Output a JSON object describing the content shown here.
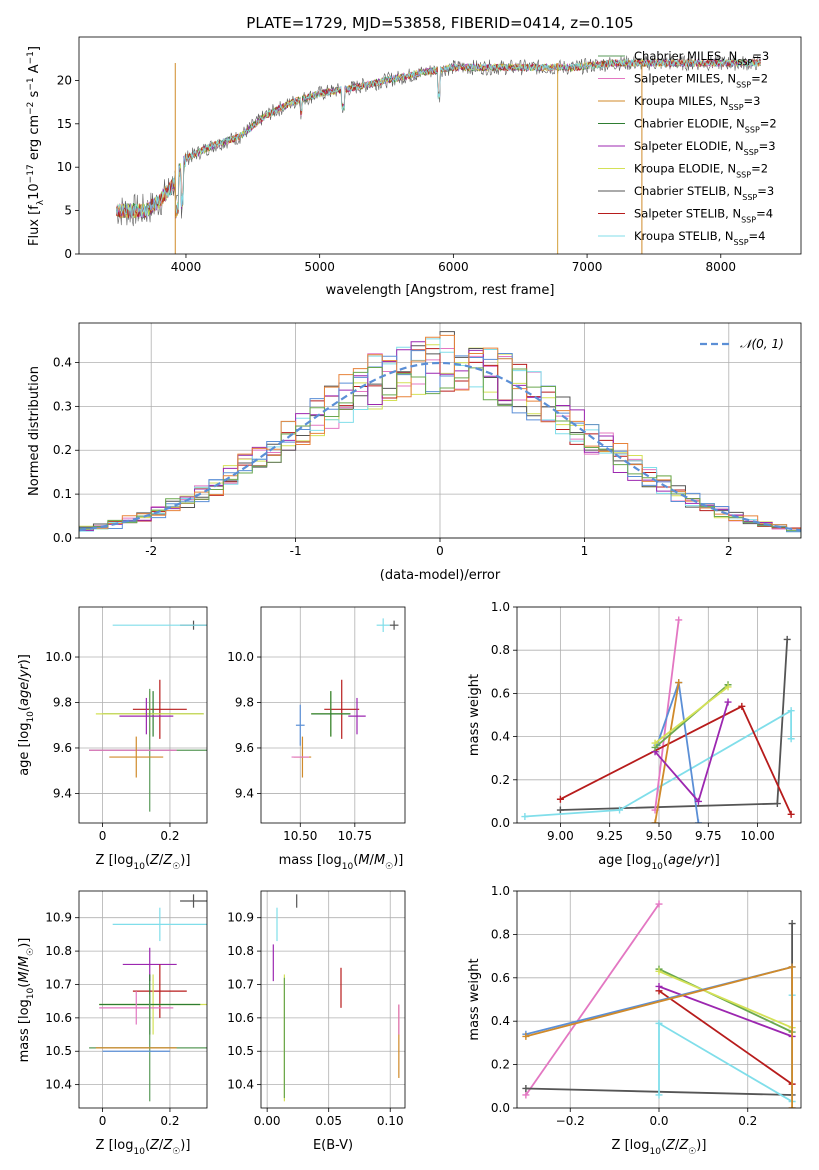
{
  "chart_data": [
    {
      "id": "spectrum",
      "type": "line",
      "title": "PLATE=1729, MJD=53858, FIBERID=0414, z=0.105",
      "xlabel": "wavelength [Angstrom, rest frame]",
      "ylabel": "Flux [f_λ 10^-17 erg cm^-2 s^-1 A^-1]",
      "xlim": [
        3200,
        8600
      ],
      "ylim": [
        0,
        25
      ],
      "xticks": [
        4000,
        5000,
        6000,
        7000,
        8000
      ],
      "yticks": [
        0,
        5,
        10,
        15,
        20
      ],
      "legend_position": "right",
      "continuum": {
        "x": [
          3500,
          3700,
          3800,
          3900,
          4000,
          4200,
          4400,
          4600,
          4800,
          5000,
          5200,
          5500,
          5800,
          6000,
          6300,
          6600,
          6900,
          7200,
          7500,
          7800,
          8100,
          8300
        ],
        "y": [
          5,
          5,
          6,
          8,
          11,
          12.5,
          13.5,
          16,
          17.5,
          18.5,
          19,
          20,
          21,
          21.5,
          21.5,
          21.5,
          21.5,
          22,
          22,
          22,
          22,
          22
        ]
      },
      "series": [
        {
          "name": "Chabrier MILES, N_SSP=3",
          "color": "#5a9a5a"
        },
        {
          "name": "Salpeter MILES, N_SSP=2",
          "color": "#e377c2"
        },
        {
          "name": "Kroupa MILES, N_SSP=3",
          "color": "#d08a2a"
        },
        {
          "name": "Chabrier ELODIE, N_SSP=2",
          "color": "#2e7d32"
        },
        {
          "name": "Salpeter ELODIE, N_SSP=3",
          "color": "#9c27b0"
        },
        {
          "name": "Kroupa ELODIE, N_SSP=2",
          "color": "#d4e157"
        },
        {
          "name": "Chabrier STELIB, N_SSP=3",
          "color": "#555555"
        },
        {
          "name": "Salpeter STELIB, N_SSP=4",
          "color": "#b71c1c"
        },
        {
          "name": "Kroupa STELIB, N_SSP=4",
          "color": "#80deea"
        }
      ]
    },
    {
      "id": "residuals",
      "type": "line",
      "xlabel": "(data-model)/error",
      "ylabel": "Normed distribution",
      "xlim": [
        -2.5,
        2.5
      ],
      "ylim": [
        0,
        0.49
      ],
      "xticks": [
        -2,
        -1,
        0,
        1,
        2
      ],
      "yticks": [
        0.0,
        0.1,
        0.2,
        0.3,
        0.4
      ],
      "legend": "𝒩(0, 1)",
      "legend_position": "top-right",
      "normal_curve": {
        "mu": 0,
        "sigma": 1,
        "color": "#5b8fd6",
        "style": "dashed"
      },
      "histograms": {
        "bin_edges_start": -2.5,
        "bin_width": 0.1,
        "colors": [
          "#e377c2",
          "#d4e157",
          "#b71c1c",
          "#555555",
          "#80deea",
          "#9c27b0",
          "#5b8fd6",
          "#e8833a",
          "#6aa84f"
        ]
      }
    },
    {
      "id": "age_vs_Z",
      "type": "scatter",
      "xlabel": "Z [log10(Z/Z☉)]",
      "ylabel": "age [log10(age/yr)]",
      "xlim": [
        -0.07,
        0.31
      ],
      "ylim": [
        9.27,
        10.22
      ],
      "xticks": [
        0.0,
        0.2
      ],
      "yticks": [
        9.4,
        9.6,
        9.8,
        10.0
      ],
      "points": [
        {
          "x": 0.27,
          "y": 10.14,
          "xerr": 0.04,
          "yerr": 0.02,
          "color": "#555555"
        },
        {
          "x": 0.17,
          "y": 10.14,
          "xerr": 0.14,
          "yerr": 0.0,
          "color": "#80deea"
        },
        {
          "x": 0.17,
          "y": 9.77,
          "xerr": 0.08,
          "yerr": 0.13,
          "color": "#b71c1c"
        },
        {
          "x": 0.15,
          "y": 9.75,
          "xerr": 0.15,
          "yerr": 0.1,
          "color": "#2e7d32"
        },
        {
          "x": 0.14,
          "y": 9.75,
          "xerr": 0.16,
          "yerr": 0.1,
          "color": "#d4e157"
        },
        {
          "x": 0.13,
          "y": 9.74,
          "xerr": 0.08,
          "yerr": 0.08,
          "color": "#9c27b0"
        },
        {
          "x": 0.14,
          "y": 9.59,
          "xerr": 0.18,
          "yerr": 0.27,
          "color": "#5a9a5a"
        },
        {
          "x": 0.09,
          "y": 9.59,
          "xerr": 0.13,
          "yerr": 0.0,
          "color": "#e377c2"
        },
        {
          "x": 0.1,
          "y": 9.56,
          "xerr": 0.08,
          "yerr": 0.09,
          "color": "#d08a2a"
        }
      ]
    },
    {
      "id": "age_vs_mass",
      "type": "scatter",
      "xlabel": "mass [log10(M/M☉)]",
      "ylabel": "",
      "xlim": [
        10.32,
        10.98
      ],
      "ylim": [
        9.27,
        10.22
      ],
      "xticks": [
        10.5,
        10.75
      ],
      "xtick_labels": [
        "10.50",
        "10.75"
      ],
      "yticks": [
        9.4,
        9.6,
        9.8,
        10.0
      ],
      "points": [
        {
          "x": 10.93,
          "y": 10.14,
          "xerr": 0.02,
          "yerr": 0.02,
          "color": "#555555"
        },
        {
          "x": 10.88,
          "y": 10.14,
          "xerr": 0.03,
          "yerr": 0.03,
          "color": "#80deea"
        },
        {
          "x": 10.69,
          "y": 9.77,
          "xerr": 0.08,
          "yerr": 0.13,
          "color": "#b71c1c"
        },
        {
          "x": 10.64,
          "y": 9.75,
          "xerr": 0.09,
          "yerr": 0.1,
          "color": "#d4e157"
        },
        {
          "x": 10.64,
          "y": 9.75,
          "xerr": 0.09,
          "yerr": 0.1,
          "color": "#2e7d32"
        },
        {
          "x": 10.76,
          "y": 9.74,
          "xerr": 0.04,
          "yerr": 0.08,
          "color": "#9c27b0"
        },
        {
          "x": 10.5,
          "y": 9.7,
          "xerr": 0.02,
          "yerr": 0.09,
          "color": "#5b8fd6"
        },
        {
          "x": 10.51,
          "y": 9.56,
          "xerr": 0.04,
          "yerr": 0.09,
          "color": "#d08a2a"
        },
        {
          "x": 10.5,
          "y": 9.56,
          "xerr": 0.04,
          "yerr": 0.0,
          "color": "#e377c2"
        }
      ]
    },
    {
      "id": "weight_vs_age",
      "type": "line",
      "xlabel": "age [log10(age/yr)]",
      "ylabel": "mass weight",
      "xlim": [
        8.78,
        10.22
      ],
      "ylim": [
        0,
        1.0
      ],
      "xticks": [
        9.0,
        9.25,
        9.5,
        9.75,
        10.0
      ],
      "xtick_labels": [
        "9.00",
        "9.25",
        "9.50",
        "9.75",
        "10.00"
      ],
      "yticks": [
        0.0,
        0.2,
        0.4,
        0.6,
        0.8,
        1.0
      ],
      "series": [
        {
          "color": "#555555",
          "x": [
            9.0,
            10.1,
            10.15
          ],
          "y": [
            0.06,
            0.09,
            0.85
          ]
        },
        {
          "color": "#80deea",
          "x": [
            8.82,
            9.3,
            10.17,
            10.17
          ],
          "y": [
            0.03,
            0.06,
            0.52,
            0.39
          ]
        },
        {
          "color": "#e377c2",
          "x": [
            9.48,
            9.6
          ],
          "y": [
            0.06,
            0.94
          ]
        },
        {
          "color": "#b71c1c",
          "x": [
            9.0,
            9.92,
            10.17
          ],
          "y": [
            0.11,
            0.54,
            0.04
          ]
        },
        {
          "color": "#5b8fd6",
          "x": [
            9.49,
            9.6,
            9.7
          ],
          "y": [
            0.36,
            0.65,
            0.0
          ]
        },
        {
          "color": "#d08a2a",
          "x": [
            9.48,
            9.6
          ],
          "y": [
            0.0,
            0.65
          ]
        },
        {
          "color": "#9c27b0",
          "x": [
            9.48,
            9.7,
            9.85
          ],
          "y": [
            0.33,
            0.1,
            0.56
          ]
        },
        {
          "color": "#6aa84f",
          "x": [
            9.48,
            9.85
          ],
          "y": [
            0.35,
            0.64
          ]
        },
        {
          "color": "#d4e157",
          "x": [
            9.48,
            9.85
          ],
          "y": [
            0.37,
            0.63
          ]
        }
      ]
    },
    {
      "id": "mass_vs_Z",
      "type": "scatter",
      "xlabel": "Z [log10(Z/Z☉)]",
      "ylabel": "mass [log10(M/M☉)]",
      "xlim": [
        -0.07,
        0.31
      ],
      "ylim": [
        10.33,
        10.98
      ],
      "xticks": [
        0.0,
        0.2
      ],
      "yticks": [
        10.4,
        10.5,
        10.6,
        10.7,
        10.8,
        10.9
      ],
      "points": [
        {
          "x": 0.27,
          "y": 10.95,
          "xerr": 0.04,
          "yerr": 0.02,
          "color": "#555555"
        },
        {
          "x": 0.17,
          "y": 10.88,
          "xerr": 0.14,
          "yerr": 0.05,
          "color": "#80deea"
        },
        {
          "x": 0.14,
          "y": 10.76,
          "xerr": 0.08,
          "yerr": 0.05,
          "color": "#9c27b0"
        },
        {
          "x": 0.17,
          "y": 10.68,
          "xerr": 0.08,
          "yerr": 0.08,
          "color": "#b71c1c"
        },
        {
          "x": 0.15,
          "y": 10.64,
          "xerr": 0.16,
          "yerr": 0.09,
          "color": "#d4e157"
        },
        {
          "x": 0.14,
          "y": 10.64,
          "xerr": 0.15,
          "yerr": 0.09,
          "color": "#2e7d32"
        },
        {
          "x": 0.1,
          "y": 10.63,
          "xerr": 0.11,
          "yerr": 0.05,
          "color": "#e377c2"
        },
        {
          "x": 0.14,
          "y": 10.51,
          "xerr": 0.18,
          "yerr": 0.16,
          "color": "#5a9a5a"
        },
        {
          "x": 0.1,
          "y": 10.51,
          "xerr": 0.12,
          "yerr": 0.0,
          "color": "#d08a2a"
        },
        {
          "x": 0.1,
          "y": 10.5,
          "xerr": 0.1,
          "yerr": 0.0,
          "color": "#5b8fd6"
        }
      ]
    },
    {
      "id": "mass_vs_ebv",
      "type": "scatter",
      "xlabel": "E(B-V)",
      "ylabel": "",
      "xlim": [
        -0.005,
        0.112
      ],
      "ylim": [
        10.33,
        10.98
      ],
      "xticks": [
        0.0,
        0.05,
        0.1
      ],
      "xtick_labels": [
        "0.00",
        "0.05",
        "0.10"
      ],
      "yticks": [
        10.4,
        10.5,
        10.6,
        10.7,
        10.8,
        10.9
      ],
      "segments": [
        {
          "x": 0.024,
          "y1": 10.93,
          "y2": 10.97,
          "color": "#555555"
        },
        {
          "x": 0.008,
          "y1": 10.83,
          "y2": 10.93,
          "color": "#80deea"
        },
        {
          "x": 0.005,
          "y1": 10.71,
          "y2": 10.82,
          "color": "#9c27b0"
        },
        {
          "x": 0.06,
          "y1": 10.63,
          "y2": 10.75,
          "color": "#b71c1c"
        },
        {
          "x": 0.014,
          "y1": 10.35,
          "y2": 10.73,
          "color": "#d4e157"
        },
        {
          "x": 0.014,
          "y1": 10.36,
          "y2": 10.72,
          "color": "#6aa84f"
        },
        {
          "x": 0.107,
          "y1": 10.42,
          "y2": 10.64,
          "color": "#d08a2a"
        },
        {
          "x": 0.107,
          "y1": 10.55,
          "y2": 10.64,
          "color": "#e377c2"
        }
      ]
    },
    {
      "id": "weight_vs_Z",
      "type": "line",
      "xlabel": "Z [log10(Z/Z☉)]",
      "ylabel": "mass weight",
      "xlim": [
        -0.32,
        0.32
      ],
      "ylim": [
        0,
        1.0
      ],
      "xticks": [
        -0.2,
        0.0,
        0.2
      ],
      "xtick_labels": [
        "−0.2",
        "0.0",
        "0.2"
      ],
      "yticks": [
        0.0,
        0.2,
        0.4,
        0.6,
        0.8,
        1.0
      ],
      "series": [
        {
          "color": "#e377c2",
          "x": [
            -0.3,
            0.0
          ],
          "y": [
            0.06,
            0.94
          ]
        },
        {
          "color": "#555555",
          "x": [
            -0.3,
            0.3,
            0.3
          ],
          "y": [
            0.09,
            0.06,
            0.85
          ]
        },
        {
          "color": "#80deea",
          "x": [
            0.0,
            0.0,
            0.3,
            0.3
          ],
          "y": [
            0.06,
            0.39,
            0.03,
            0.52
          ]
        },
        {
          "color": "#b71c1c",
          "x": [
            0.0,
            0.3
          ],
          "y": [
            0.54,
            0.11
          ]
        },
        {
          "color": "#9c27b0",
          "x": [
            0.0,
            0.3
          ],
          "y": [
            0.56,
            0.33
          ]
        },
        {
          "color": "#6aa84f",
          "x": [
            0.0,
            0.3
          ],
          "y": [
            0.64,
            0.35
          ]
        },
        {
          "color": "#d4e157",
          "x": [
            0.0,
            0.3
          ],
          "y": [
            0.63,
            0.37
          ]
        },
        {
          "color": "#5b8fd6",
          "x": [
            -0.3,
            0.3
          ],
          "y": [
            0.34,
            0.65
          ]
        },
        {
          "color": "#d08a2a",
          "x": [
            -0.3,
            0.3,
            0.3
          ],
          "y": [
            0.33,
            0.65,
            0.0
          ]
        }
      ]
    }
  ]
}
